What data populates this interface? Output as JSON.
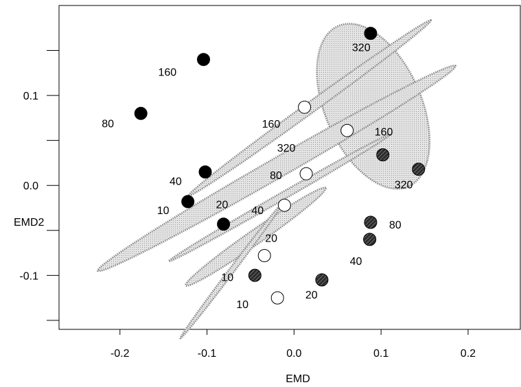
{
  "chart_data": {
    "type": "scatter",
    "xlabel": "EMD",
    "ylabel": "EMD2",
    "xlim": [
      -0.27,
      0.26
    ],
    "ylim": [
      -0.16,
      0.2
    ],
    "x_ticks": [
      -0.2,
      -0.1,
      0.0,
      0.1,
      0.2
    ],
    "x_tick_labels": [
      "-0.2",
      "-0.1",
      "0.0",
      "0.1",
      "0.2"
    ],
    "y_ticks": [
      -0.1,
      0.0,
      0.1
    ],
    "y_tick_labels": [
      "-0.1",
      "0.0",
      "0.1"
    ],
    "grid": false,
    "legend": "none",
    "colors": {
      "black": "#000000",
      "white": "#ffffff",
      "hatched": "#3a3a3a",
      "ellipse_fill": "#dcdcdc",
      "ellipse_border": "#8a8a8a"
    },
    "points": [
      {
        "x": 0.088,
        "y": 0.169,
        "label": "320",
        "fill": "black"
      },
      {
        "x": -0.104,
        "y": 0.14,
        "label": "160",
        "fill": "black"
      },
      {
        "x": -0.176,
        "y": 0.08,
        "label": "80",
        "fill": "black"
      },
      {
        "x": -0.102,
        "y": 0.015,
        "label": "40",
        "fill": "black"
      },
      {
        "x": -0.122,
        "y": -0.018,
        "label": "10",
        "fill": "black"
      },
      {
        "x": -0.081,
        "y": -0.043,
        "label": "20",
        "fill": "black"
      },
      {
        "x": 0.012,
        "y": 0.087,
        "label": "160",
        "fill": "white"
      },
      {
        "x": 0.061,
        "y": 0.061,
        "label": "320",
        "fill": "white"
      },
      {
        "x": 0.014,
        "y": 0.013,
        "label": "80",
        "fill": "white"
      },
      {
        "x": -0.011,
        "y": -0.022,
        "label": "40",
        "fill": "white"
      },
      {
        "x": -0.034,
        "y": -0.078,
        "label": "20",
        "fill": "white"
      },
      {
        "x": -0.019,
        "y": -0.125,
        "label": "10",
        "fill": "white"
      },
      {
        "x": 0.102,
        "y": 0.034,
        "label": "160",
        "fill": "hatched"
      },
      {
        "x": 0.143,
        "y": 0.018,
        "label": "320",
        "fill": "hatched"
      },
      {
        "x": 0.088,
        "y": -0.041,
        "label": "80",
        "fill": "hatched"
      },
      {
        "x": 0.087,
        "y": -0.06,
        "label": "40",
        "fill": "hatched"
      },
      {
        "x": 0.032,
        "y": -0.105,
        "label": "20",
        "fill": "hatched"
      },
      {
        "x": -0.045,
        "y": -0.1,
        "label": "10",
        "fill": "hatched"
      }
    ],
    "ellipses": [
      {
        "group": "320",
        "cx": 0.091,
        "cy": 0.088,
        "rx": 0.055,
        "ry": 0.098,
        "angle_deg": 25
      },
      {
        "group": "160",
        "cx": 0.018,
        "cy": 0.086,
        "rx": 0.17,
        "ry": 0.006,
        "angle_deg": 35
      },
      {
        "group": "80",
        "cx": -0.02,
        "cy": 0.019,
        "rx": 0.235,
        "ry": 0.011,
        "angle_deg": 29
      },
      {
        "group": "40",
        "cx": -0.017,
        "cy": -0.014,
        "rx": 0.145,
        "ry": 0.004,
        "angle_deg": 29
      },
      {
        "group": "20",
        "cx": -0.044,
        "cy": -0.057,
        "rx": 0.097,
        "ry": 0.008,
        "angle_deg": 34
      },
      {
        "group": "10",
        "cx": -0.072,
        "cy": -0.095,
        "rx": 0.095,
        "ry": 0.003,
        "angle_deg": 52
      }
    ]
  }
}
